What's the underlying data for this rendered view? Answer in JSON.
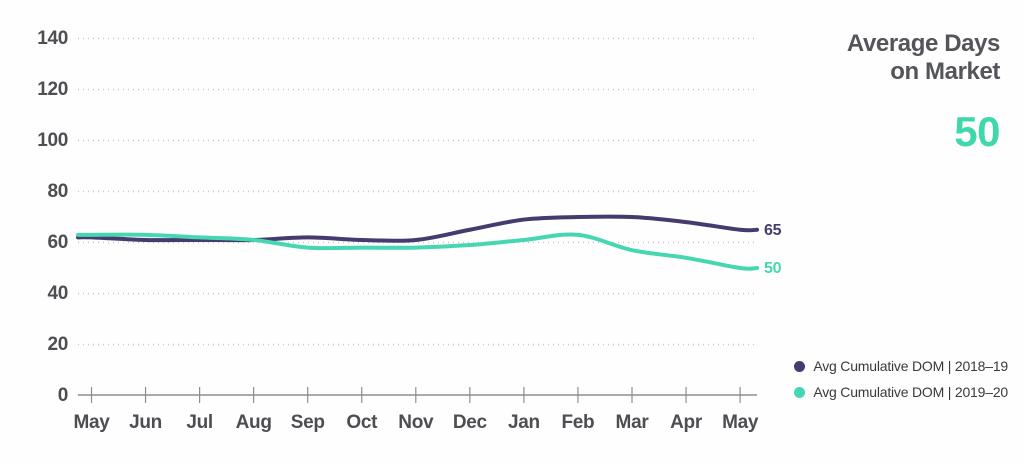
{
  "panel": {
    "title_line1": "Average Days",
    "title_line2": "on Market",
    "highlight_value": "50"
  },
  "colors": {
    "series_2018_19": "#463a6e",
    "series_2019_20": "#46d7b2",
    "highlight_value": "#3ed8ac",
    "title_text": "#54555a",
    "axis_label_text": "#4d4e52",
    "legend_text": "#3a3a3e",
    "axis_line": "#8d8d8d",
    "gridline": "#c8c8c8"
  },
  "chart_data": {
    "type": "line",
    "title": "Average Days on Market",
    "categories": [
      "May",
      "Jun",
      "Jul",
      "Aug",
      "Sep",
      "Oct",
      "Nov",
      "Dec",
      "Jan",
      "Feb",
      "Mar",
      "Apr",
      "May"
    ],
    "series": [
      {
        "name": "Avg Cumulative DOM  |  2018–19",
        "slug": "2018-19",
        "color": "#463a6e",
        "values": [
          62,
          61,
          61,
          61,
          62,
          61,
          61,
          65,
          69,
          70,
          70,
          68,
          65
        ],
        "end_label": "65"
      },
      {
        "name": "Avg Cumulative DOM  |  2019–20",
        "slug": "2019-20",
        "color": "#46d7b2",
        "values": [
          63,
          63,
          62,
          61,
          58,
          58,
          58,
          59,
          61,
          63,
          57,
          54,
          50
        ],
        "end_label": "50"
      }
    ],
    "ylim": [
      0,
      140
    ],
    "ytick_step": 20,
    "ytick_labels": [
      "0",
      "20",
      "40",
      "60",
      "80",
      "100",
      "120",
      "140"
    ],
    "grid": "dotted-horizontal",
    "legend_position": "bottom-right"
  }
}
